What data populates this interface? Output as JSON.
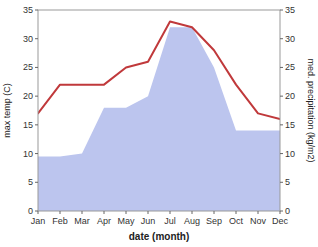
{
  "chart_data": {
    "type": "line",
    "xlabel": "date (month)",
    "ylabel": "max temp (C)",
    "y2label": "med. precipitation (kg/m2)",
    "categories": [
      "Jan",
      "Feb",
      "Mar",
      "Apr",
      "May",
      "Jun",
      "Jul",
      "Aug",
      "Sep",
      "Oct",
      "Nov",
      "Dec"
    ],
    "series": [
      {
        "type": "area",
        "axis": "y2",
        "color": "#bcc5ee",
        "values": [
          9.5,
          9.5,
          10,
          18,
          18,
          20,
          32,
          32,
          25,
          14,
          14,
          14
        ]
      },
      {
        "type": "line",
        "color": "#c0393b",
        "values": [
          17,
          22,
          22,
          22,
          25,
          26,
          33,
          32,
          28,
          22,
          17,
          16
        ]
      }
    ],
    "ylim": [
      0,
      35
    ],
    "yticks": [
      0,
      5,
      10,
      15,
      20,
      25,
      30,
      35
    ],
    "y2lim": [
      0,
      35
    ],
    "y2ticks": [
      0,
      5,
      10,
      15,
      20,
      25,
      30,
      35
    ],
    "grid": false
  }
}
